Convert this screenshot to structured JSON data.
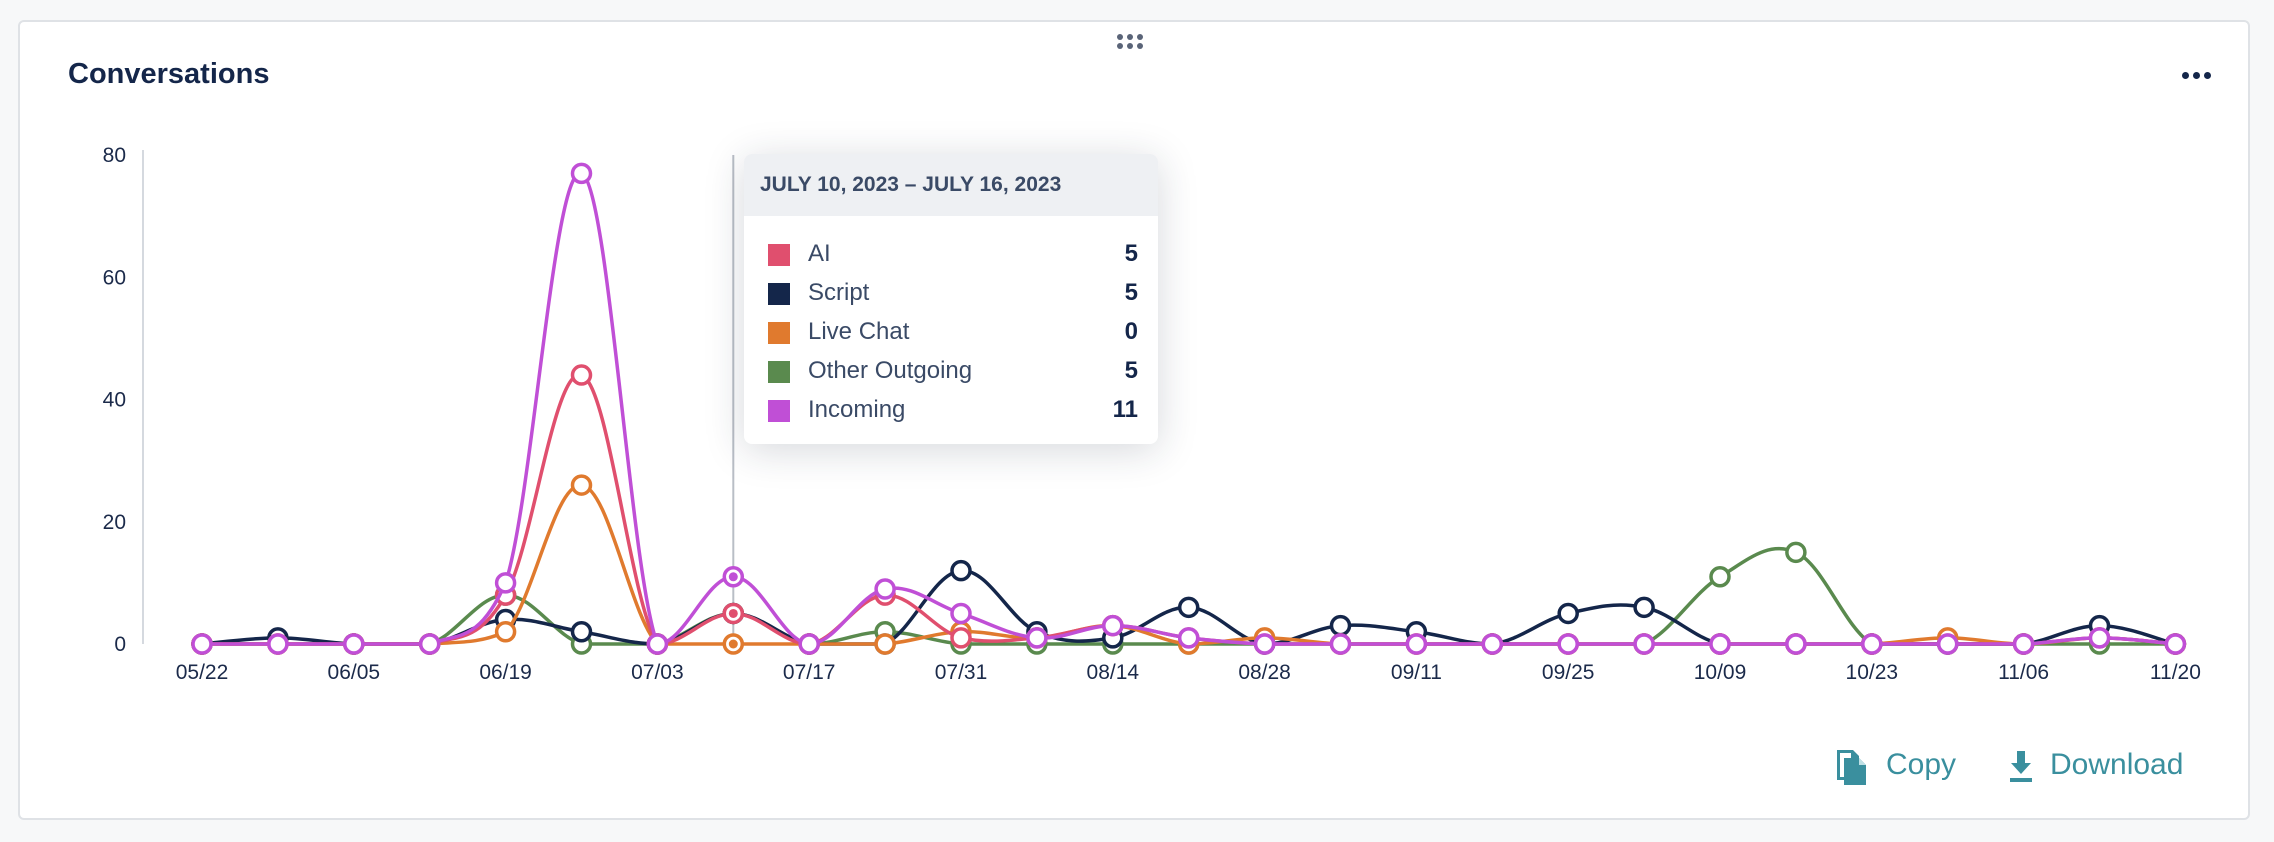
{
  "card": {
    "title": "Conversations"
  },
  "actions": {
    "copy_label": "Copy",
    "download_label": "Download"
  },
  "tooltip": {
    "header": "JULY 10, 2023 – JULY 16, 2023",
    "rows": [
      {
        "label": "AI",
        "value": "5",
        "color": "#e04f6e"
      },
      {
        "label": "Script",
        "value": "5",
        "color": "#14264a"
      },
      {
        "label": "Live Chat",
        "value": "0",
        "color": "#e07a2e"
      },
      {
        "label": "Other Outgoing",
        "value": "5",
        "color": "#5a8a4e"
      },
      {
        "label": "Incoming",
        "value": "11",
        "color": "#c04fd6"
      }
    ]
  },
  "chart_data": {
    "type": "line",
    "x": [
      "05/22",
      "05/29",
      "06/05",
      "06/12",
      "06/19",
      "06/26",
      "07/03",
      "07/10",
      "07/17",
      "07/24",
      "07/31",
      "08/07",
      "08/14",
      "08/21",
      "08/28",
      "09/04",
      "09/11",
      "09/18",
      "09/25",
      "10/02",
      "10/09",
      "10/16",
      "10/23",
      "10/30",
      "11/06",
      "11/13",
      "11/20"
    ],
    "x_tick_labels": [
      "05/22",
      "06/05",
      "06/19",
      "07/03",
      "07/17",
      "07/31",
      "08/14",
      "08/28",
      "09/11",
      "09/25",
      "10/09",
      "10/23",
      "11/06",
      "11/20"
    ],
    "ylim": [
      0,
      80
    ],
    "y_ticks": [
      0,
      20,
      40,
      60,
      80
    ],
    "highlight_index": 7,
    "series": [
      {
        "name": "Other Outgoing",
        "color": "#5a8a4e",
        "values": [
          0,
          0,
          0,
          0,
          8,
          0,
          0,
          5,
          0,
          2,
          0,
          0,
          0,
          0,
          0,
          0,
          0,
          0,
          0,
          0,
          11,
          15,
          0,
          0,
          0,
          0,
          0
        ]
      },
      {
        "name": "Script",
        "color": "#14264a",
        "values": [
          0,
          1,
          0,
          0,
          4,
          2,
          0,
          5,
          0,
          0,
          12,
          2,
          1,
          6,
          0,
          3,
          2,
          0,
          5,
          6,
          0,
          0,
          0,
          0,
          0,
          3,
          0
        ]
      },
      {
        "name": "Live Chat",
        "color": "#e07a2e",
        "values": [
          0,
          0,
          0,
          0,
          2,
          26,
          0,
          0,
          0,
          0,
          2,
          1,
          3,
          0,
          1,
          0,
          0,
          0,
          0,
          0,
          0,
          0,
          0,
          1,
          0,
          1,
          0
        ]
      },
      {
        "name": "AI",
        "color": "#e04f6e",
        "values": [
          0,
          0,
          0,
          0,
          8,
          44,
          0,
          5,
          0,
          8,
          1,
          1,
          3,
          1,
          0,
          0,
          0,
          0,
          0,
          0,
          0,
          0,
          0,
          0,
          0,
          1,
          0
        ]
      },
      {
        "name": "Incoming",
        "color": "#c04fd6",
        "values": [
          0,
          0,
          0,
          0,
          10,
          77,
          0,
          11,
          0,
          9,
          5,
          1,
          3,
          1,
          0,
          0,
          0,
          0,
          0,
          0,
          0,
          0,
          0,
          0,
          0,
          1,
          0
        ]
      }
    ],
    "grid": false,
    "legend": "tooltip"
  }
}
